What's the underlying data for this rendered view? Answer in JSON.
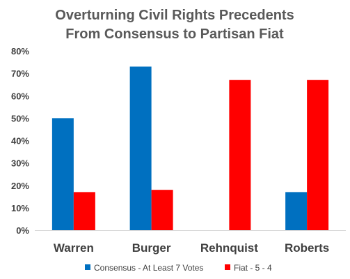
{
  "chart_data": {
    "type": "bar",
    "title": [
      "Overturning Civil Rights Precedents",
      "From Consensus to Partisan Fiat"
    ],
    "categories": [
      "Warren",
      "Burger",
      "Rehnquist",
      "Roberts"
    ],
    "y_ticks": [
      "0%",
      "10%",
      "20%",
      "30%",
      "40%",
      "50%",
      "60%",
      "70%",
      "80%"
    ],
    "ylim": [
      0,
      80
    ],
    "y_unit": "%",
    "grid": false,
    "legend_position": "bottom",
    "series": [
      {
        "name": "Consensus - At Least 7 Votes",
        "color": "#0070C0",
        "values": [
          50,
          73,
          0,
          17
        ]
      },
      {
        "name": "Fiat - 5 - 4",
        "color": "#FF0000",
        "values": [
          17,
          18,
          67,
          67
        ]
      }
    ]
  }
}
